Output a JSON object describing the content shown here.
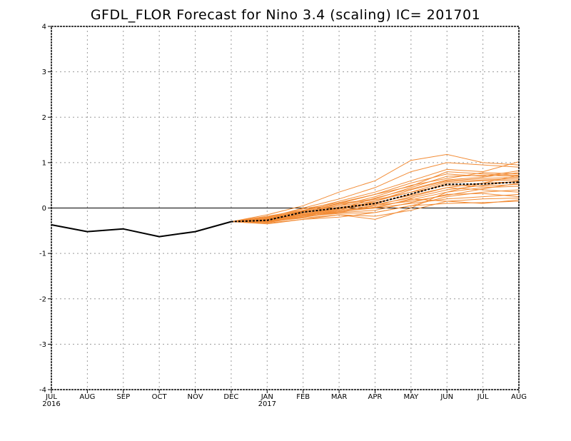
{
  "chart_data": {
    "type": "line",
    "title": "GFDL_FLOR Forecast for Nino 3.4 (scaling) IC= 201701",
    "x_labels": [
      "JUL",
      "AUG",
      "SEP",
      "OCT",
      "NOV",
      "DEC",
      "JAN",
      "FEB",
      "MAR",
      "APR",
      "MAY",
      "JUN",
      "JUL",
      "AUG"
    ],
    "x_sublabels": [
      "2016",
      "",
      "",
      "",
      "",
      "",
      "2017",
      "",
      "",
      "",
      "",
      "",
      "",
      ""
    ],
    "y_ticks": [
      -4,
      -3,
      -2,
      -1,
      0,
      1,
      2,
      3,
      4
    ],
    "ylim": [
      -4,
      4
    ],
    "grid": true,
    "zero_line": true,
    "colors": {
      "observed": "#000000",
      "members": "#f28c36",
      "mean": "#000000"
    },
    "observed": {
      "x_index": [
        0,
        1,
        2,
        3,
        4,
        5
      ],
      "values": [
        -0.37,
        -0.52,
        -0.46,
        -0.63,
        -0.52,
        -0.3
      ]
    },
    "ensemble_mean": {
      "x_index": [
        5,
        6,
        7,
        8,
        9,
        10,
        11,
        12,
        13
      ],
      "values": [
        -0.3,
        -0.27,
        -0.09,
        0.0,
        0.1,
        0.31,
        0.52,
        0.53,
        0.57
      ]
    },
    "members": {
      "x_index": [
        5,
        6,
        7,
        8,
        9,
        10,
        11,
        12,
        13
      ],
      "series": [
        [
          -0.3,
          -0.22,
          0.0,
          0.2,
          0.45,
          0.8,
          1.0,
          0.95,
          0.9
        ],
        [
          -0.3,
          -0.15,
          0.05,
          0.35,
          0.6,
          1.05,
          1.18,
          1.0,
          0.95
        ],
        [
          -0.3,
          -0.25,
          -0.05,
          0.15,
          0.35,
          0.6,
          0.85,
          0.8,
          1.02
        ],
        [
          -0.3,
          -0.2,
          -0.02,
          0.12,
          0.3,
          0.55,
          0.75,
          0.7,
          0.82
        ],
        [
          -0.3,
          -0.28,
          -0.1,
          0.05,
          0.25,
          0.5,
          0.65,
          0.78,
          0.75
        ],
        [
          -0.3,
          -0.18,
          -0.05,
          0.1,
          0.2,
          0.45,
          0.7,
          0.72,
          0.7
        ],
        [
          -0.3,
          -0.3,
          -0.15,
          -0.05,
          0.15,
          0.4,
          0.6,
          0.65,
          0.68
        ],
        [
          -0.3,
          -0.26,
          -0.12,
          0.0,
          0.1,
          0.3,
          0.55,
          0.6,
          0.62
        ],
        [
          -0.3,
          -0.32,
          -0.2,
          -0.1,
          0.05,
          0.25,
          0.45,
          0.55,
          0.58
        ],
        [
          -0.3,
          -0.24,
          -0.08,
          0.08,
          0.18,
          0.35,
          0.5,
          0.48,
          0.52
        ],
        [
          -0.3,
          -0.35,
          -0.25,
          -0.15,
          -0.25,
          0.0,
          0.35,
          0.45,
          0.48
        ],
        [
          -0.3,
          -0.28,
          -0.18,
          -0.12,
          -0.1,
          0.05,
          0.25,
          0.35,
          0.4
        ],
        [
          -0.3,
          -0.22,
          -0.15,
          -0.05,
          0.0,
          0.1,
          0.2,
          0.25,
          0.3
        ],
        [
          -0.3,
          -0.3,
          -0.22,
          -0.15,
          -0.18,
          -0.05,
          0.15,
          0.2,
          0.22
        ],
        [
          -0.3,
          -0.33,
          -0.25,
          -0.2,
          -0.1,
          0.05,
          0.1,
          0.12,
          0.15
        ],
        [
          -0.3,
          -0.27,
          -0.15,
          -0.1,
          -0.05,
          0.12,
          0.3,
          0.32,
          0.25
        ],
        [
          -0.3,
          -0.2,
          -0.1,
          0.02,
          0.12,
          0.28,
          0.45,
          0.4,
          0.35
        ],
        [
          -0.3,
          -0.25,
          -0.12,
          -0.02,
          0.08,
          0.22,
          0.4,
          0.5,
          0.6
        ],
        [
          -0.3,
          -0.29,
          -0.2,
          -0.08,
          0.02,
          0.18,
          0.35,
          0.55,
          0.72
        ],
        [
          -0.3,
          -0.23,
          -0.07,
          0.05,
          0.15,
          0.35,
          0.58,
          0.62,
          0.65
        ],
        [
          -0.3,
          -0.31,
          -0.18,
          -0.06,
          0.06,
          0.15,
          0.28,
          0.42,
          0.55
        ],
        [
          -0.3,
          -0.26,
          -0.14,
          -0.03,
          0.22,
          0.42,
          0.62,
          0.68,
          0.78
        ],
        [
          -0.3,
          -0.21,
          -0.06,
          0.1,
          0.3,
          0.48,
          0.8,
          0.75,
          0.72
        ],
        [
          -0.3,
          -0.28,
          -0.16,
          -0.08,
          0.0,
          0.2,
          0.15,
          0.1,
          0.18
        ]
      ]
    }
  }
}
